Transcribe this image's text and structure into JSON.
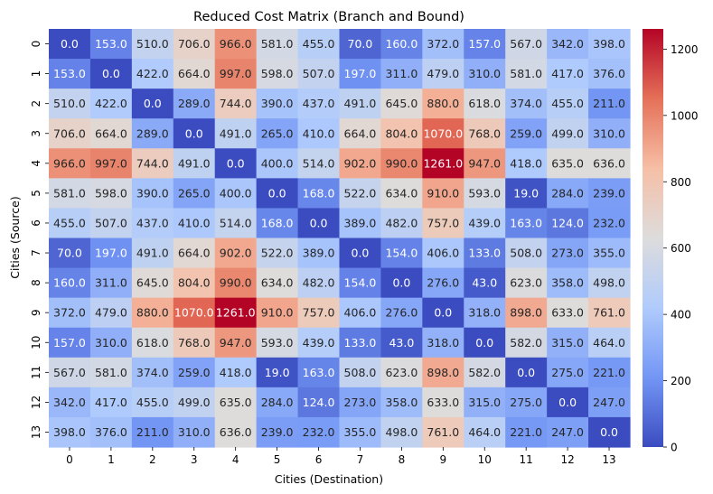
{
  "chart_data": {
    "type": "heatmap",
    "title": "Reduced Cost Matrix (Branch and Bound)",
    "xlabel": "Cities (Destination)",
    "ylabel": "Cities (Source)",
    "x_categories": [
      "0",
      "1",
      "2",
      "3",
      "4",
      "5",
      "6",
      "7",
      "8",
      "9",
      "10",
      "11",
      "12",
      "13"
    ],
    "y_categories": [
      "0",
      "1",
      "2",
      "3",
      "4",
      "5",
      "6",
      "7",
      "8",
      "9",
      "10",
      "11",
      "12",
      "13"
    ],
    "value_format": "1 decimal",
    "colormap": "coolwarm",
    "colormap_stops": [
      "#3b4cc0",
      "#7396f5",
      "#b0cbfc",
      "#dddcdc",
      "#f6bfa6",
      "#e57058",
      "#b40426"
    ],
    "colorbar": {
      "range": [
        0,
        1261
      ],
      "ticks": [
        0,
        200,
        400,
        600,
        800,
        1000,
        1200
      ]
    },
    "values": [
      [
        0,
        153,
        510,
        706,
        966,
        581,
        455,
        70,
        160,
        372,
        157,
        567,
        342,
        398
      ],
      [
        153,
        0,
        422,
        664,
        997,
        598,
        507,
        197,
        311,
        479,
        310,
        581,
        417,
        376
      ],
      [
        510,
        422,
        0,
        289,
        744,
        390,
        437,
        491,
        645,
        880,
        618,
        374,
        455,
        211
      ],
      [
        706,
        664,
        289,
        0,
        491,
        265,
        410,
        664,
        804,
        1070,
        768,
        259,
        499,
        310
      ],
      [
        966,
        997,
        744,
        491,
        0,
        400,
        514,
        902,
        990,
        1261,
        947,
        418,
        635,
        636
      ],
      [
        581,
        598,
        390,
        265,
        400,
        0,
        168,
        522,
        634,
        910,
        593,
        19,
        284,
        239
      ],
      [
        455,
        507,
        437,
        410,
        514,
        168,
        0,
        389,
        482,
        757,
        439,
        163,
        124,
        232
      ],
      [
        70,
        197,
        491,
        664,
        902,
        522,
        389,
        0,
        154,
        406,
        133,
        508,
        273,
        355
      ],
      [
        160,
        311,
        645,
        804,
        990,
        634,
        482,
        154,
        0,
        276,
        43,
        623,
        358,
        498
      ],
      [
        372,
        479,
        880,
        1070,
        1261,
        910,
        757,
        406,
        276,
        0,
        318,
        898,
        633,
        761
      ],
      [
        157,
        310,
        618,
        768,
        947,
        593,
        439,
        133,
        43,
        318,
        0,
        582,
        315,
        464
      ],
      [
        567,
        581,
        374,
        259,
        418,
        19,
        163,
        508,
        623,
        898,
        582,
        0,
        275,
        221
      ],
      [
        342,
        417,
        455,
        499,
        635,
        284,
        124,
        273,
        358,
        633,
        315,
        275,
        0,
        247
      ],
      [
        398,
        376,
        211,
        310,
        636,
        239,
        232,
        355,
        498,
        761,
        464,
        221,
        247,
        0
      ]
    ]
  }
}
